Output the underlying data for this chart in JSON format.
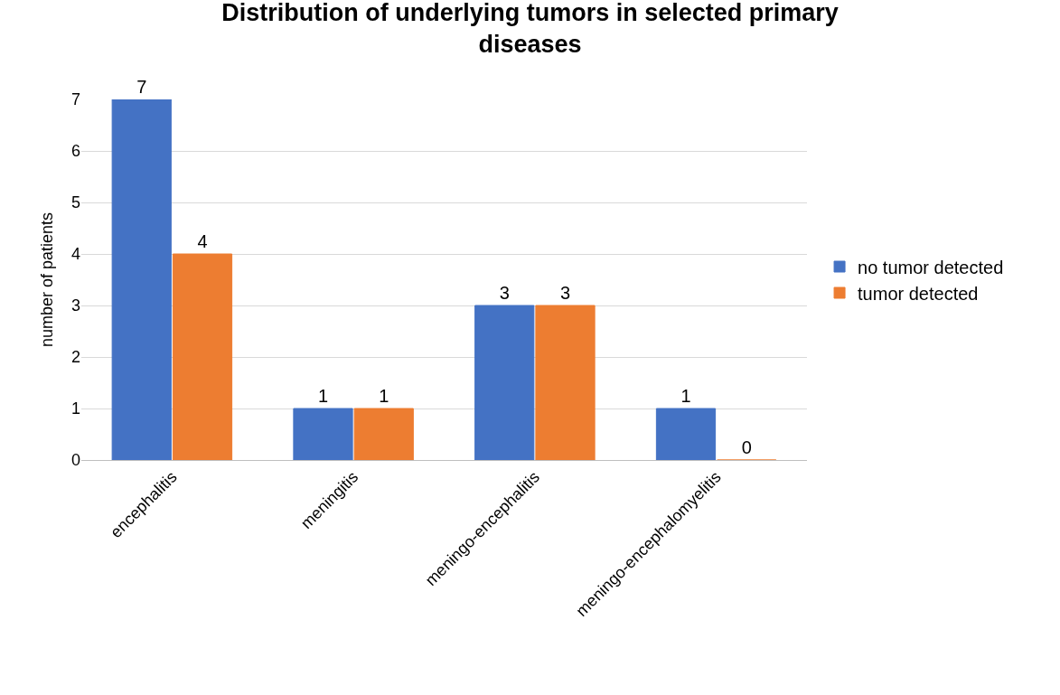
{
  "chart_data": {
    "type": "bar",
    "title": "Distribution of underlying tumors in selected primary diseases",
    "ylabel": "number of patients",
    "categories": [
      "encephalitis",
      "meningitis",
      "meningo-encephalitis",
      "meningo-encephalomyelitis"
    ],
    "series": [
      {
        "name": "no tumor detected",
        "color": "#4472c4",
        "values": [
          7,
          1,
          3,
          1
        ]
      },
      {
        "name": "tumor detected",
        "color": "#ed7d31",
        "values": [
          4,
          1,
          3,
          0
        ]
      }
    ],
    "ylim": [
      0,
      7
    ],
    "yticks": [
      0,
      1,
      2,
      3,
      4,
      5,
      6,
      7
    ],
    "grid": "y",
    "legend": "right",
    "data_labels": true
  }
}
